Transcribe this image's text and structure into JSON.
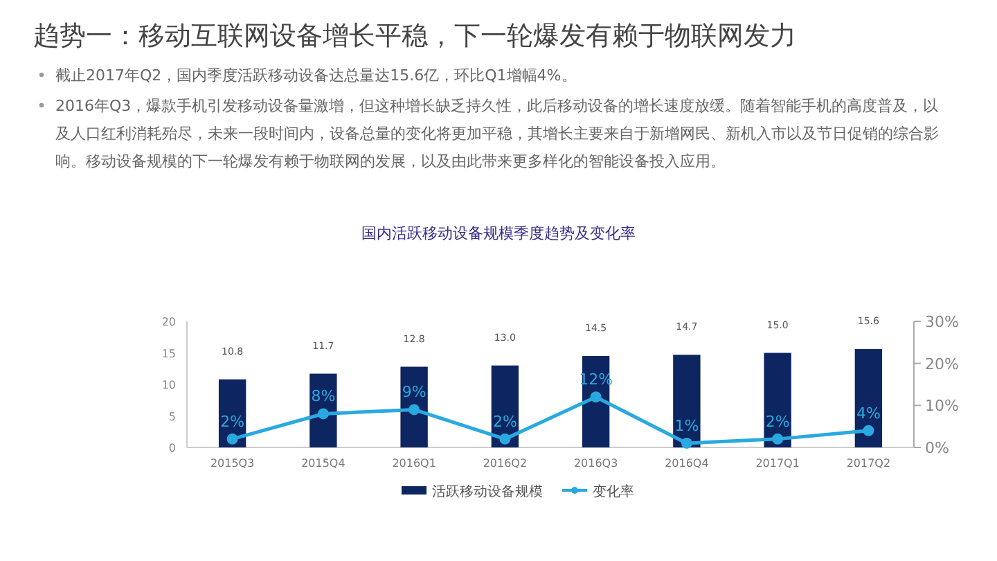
{
  "chart_data": {
    "type": "bar",
    "title": "趋势一：移动互联网设备增长平稳，下一轮爆发有赖于物联网发力",
    "subtitle": "国内活跃移动设备规模季度趋势及变化率",
    "annotations": [
      "截止2017年Q2，国内季度活跃移动设备达总量达15.6亿，环比Q1增幅4%。",
      "2016年Q3，爆款手机引发移动设备量激增，但这种增长缺乏持久性，此后移动设备的增长速度放缓。随着智能手机的高度普及，以及人口红利消耗殆尽，未来一段时间内，设备总量的变化将更加平稳，其增长主要来自于新增网民、新机入市以及节日促销的综合影响。移动设备规模的下一轮爆发有赖于物联网的发展，以及由此带来更多样化的智能设备投入应用。"
    ],
    "categories": [
      "2015Q3",
      "2015Q4",
      "2016Q1",
      "2016Q2",
      "2016Q3",
      "2016Q4",
      "2017Q1",
      "2017Q2"
    ],
    "series": [
      {
        "name": "活跃移动设备规模",
        "color": "#0d2560",
        "values": [
          10.8,
          11.7,
          12.8,
          13.0,
          14.5,
          14.7,
          15.0,
          15.6
        ],
        "value_labels": [
          "10.8",
          "11.7",
          "12.8",
          "13.0",
          "14.5",
          "14.7",
          "15.0",
          "15.6"
        ]
      },
      {
        "name": "变化率",
        "type": "line",
        "axis": "y2",
        "color": "#29a9e0",
        "marker": "circle",
        "values": [
          2,
          8,
          9,
          2,
          12,
          1,
          2,
          4
        ],
        "value_labels": [
          "2%",
          "8%",
          "9%",
          "2%",
          "12%",
          "1%",
          "2%",
          "4%"
        ]
      }
    ],
    "ylim": [
      0,
      20
    ],
    "yticks": [
      0,
      5,
      10,
      15,
      20
    ],
    "y2lim": [
      0,
      30
    ],
    "y2ticks": [
      {
        "value": 0,
        "label": "0%"
      },
      {
        "value": 10,
        "label": "10%"
      },
      {
        "value": 20,
        "label": "20%"
      },
      {
        "value": 30,
        "label": "30%"
      }
    ],
    "legend": "bottom",
    "grid": false
  }
}
